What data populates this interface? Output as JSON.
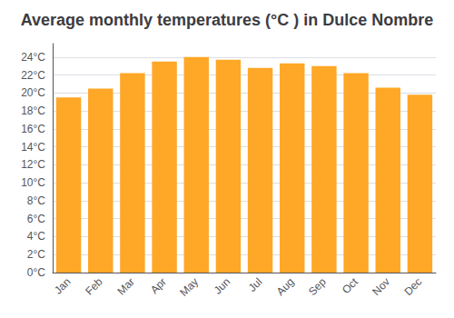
{
  "chart_data": {
    "type": "bar",
    "title": "Average monthly temperatures (°C ) in Dulce Nombre",
    "categories": [
      "Jan",
      "Feb",
      "Mar",
      "Apr",
      "May",
      "Jun",
      "Jul",
      "Aug",
      "Sep",
      "Oct",
      "Nov",
      "Dec"
    ],
    "values": [
      19.5,
      20.5,
      22.2,
      23.5,
      24.0,
      23.7,
      22.8,
      23.3,
      23.0,
      22.2,
      20.6,
      19.8
    ],
    "color": "#FFA726",
    "ylim": [
      0,
      25.5
    ],
    "yticks": [
      {
        "value": 0,
        "label": "0°C"
      },
      {
        "value": 2,
        "label": "2°C"
      },
      {
        "value": 4,
        "label": "4°C"
      },
      {
        "value": 6,
        "label": "6°C"
      },
      {
        "value": 8,
        "label": "8°C"
      },
      {
        "value": 10,
        "label": "10°C"
      },
      {
        "value": 12,
        "label": "12°C"
      },
      {
        "value": 14,
        "label": "14°C"
      },
      {
        "value": 16,
        "label": "16°C"
      },
      {
        "value": 18,
        "label": "18°C"
      },
      {
        "value": 20,
        "label": "20°C"
      },
      {
        "value": 22,
        "label": "22°C"
      },
      {
        "value": 24,
        "label": "24°C"
      }
    ],
    "grid": true
  }
}
